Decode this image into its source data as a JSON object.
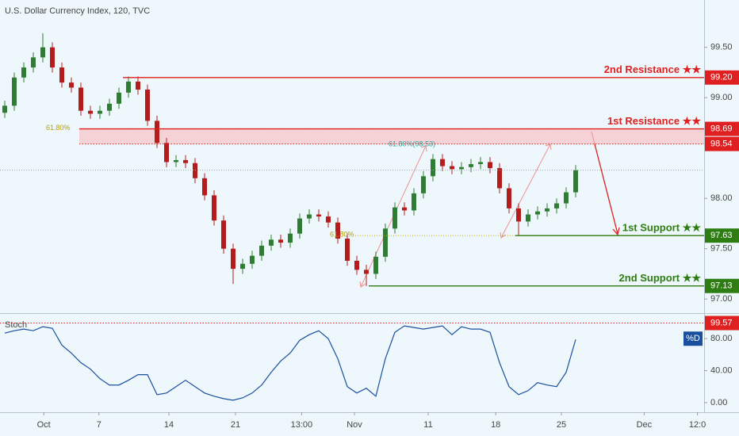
{
  "chart_data": [
    {
      "type": "candlestick",
      "title": "U.S. Dollar Currency Index, 120, TVC",
      "up_color": "#2e7d32",
      "down_color": "#b71c1c",
      "x": [
        0,
        1,
        2,
        3,
        4,
        5,
        6,
        7,
        8,
        9,
        10,
        11,
        12,
        13,
        14,
        15,
        16,
        17,
        18,
        19,
        20,
        21,
        22,
        23,
        24,
        25,
        26,
        27,
        28,
        29,
        30,
        31,
        32,
        33,
        34,
        35,
        36,
        37,
        38,
        39,
        40,
        41,
        42,
        43,
        44,
        45,
        46,
        47,
        48,
        49,
        50,
        51,
        52,
        53,
        54,
        55,
        56,
        57,
        58,
        59,
        60
      ],
      "open": [
        98.85,
        98.92,
        99.2,
        99.3,
        99.4,
        99.5,
        99.3,
        99.15,
        99.1,
        98.87,
        98.84,
        98.87,
        98.94,
        99.05,
        99.16,
        99.08,
        98.77,
        98.55,
        98.36,
        98.38,
        98.35,
        98.2,
        98.03,
        97.78,
        97.5,
        97.3,
        97.35,
        97.43,
        97.53,
        97.59,
        97.56,
        97.65,
        97.8,
        97.84,
        97.82,
        97.76,
        97.6,
        97.38,
        97.29,
        97.25,
        97.42,
        97.7,
        97.91,
        97.88,
        98.05,
        98.22,
        98.39,
        98.32,
        98.29,
        98.31,
        98.34,
        98.36,
        98.3,
        98.1,
        97.9,
        97.77,
        97.84,
        97.87,
        97.9,
        97.95,
        98.06
      ],
      "high": [
        98.97,
        99.25,
        99.35,
        99.45,
        99.64,
        99.55,
        99.35,
        99.2,
        99.15,
        98.92,
        98.92,
        98.99,
        99.1,
        99.21,
        99.21,
        99.13,
        98.82,
        98.6,
        98.43,
        98.43,
        98.4,
        98.25,
        98.08,
        97.83,
        97.55,
        97.4,
        97.48,
        97.58,
        97.64,
        97.64,
        97.7,
        97.85,
        97.89,
        97.89,
        97.87,
        97.81,
        97.65,
        97.43,
        97.34,
        97.47,
        97.75,
        97.96,
        97.96,
        98.1,
        98.27,
        98.44,
        98.44,
        98.37,
        98.36,
        98.39,
        98.41,
        98.41,
        98.35,
        98.15,
        97.95,
        97.89,
        97.92,
        97.95,
        98.0,
        98.11,
        98.33
      ],
      "low": [
        98.8,
        98.87,
        99.15,
        99.25,
        99.35,
        99.25,
        99.1,
        99.05,
        98.82,
        98.79,
        98.79,
        98.82,
        98.89,
        99.0,
        99.03,
        98.72,
        98.5,
        98.31,
        98.31,
        98.3,
        98.15,
        97.98,
        97.73,
        97.45,
        97.15,
        97.25,
        97.3,
        97.38,
        97.48,
        97.51,
        97.51,
        97.6,
        97.75,
        97.77,
        97.71,
        97.55,
        97.33,
        97.24,
        97.13,
        97.2,
        97.37,
        97.65,
        97.83,
        97.83,
        98.0,
        98.17,
        98.27,
        98.24,
        98.24,
        98.26,
        98.29,
        98.25,
        98.05,
        97.85,
        97.63,
        97.72,
        97.79,
        97.82,
        97.85,
        97.9,
        98.01
      ],
      "close": [
        98.92,
        99.2,
        99.3,
        99.4,
        99.5,
        99.3,
        99.15,
        99.1,
        98.87,
        98.84,
        98.87,
        98.94,
        99.05,
        99.16,
        99.08,
        98.77,
        98.55,
        98.36,
        98.38,
        98.35,
        98.2,
        98.03,
        97.78,
        97.5,
        97.3,
        97.35,
        97.43,
        97.53,
        97.59,
        97.56,
        97.65,
        97.8,
        97.84,
        97.82,
        97.76,
        97.6,
        97.38,
        97.29,
        97.25,
        97.42,
        97.7,
        97.91,
        97.88,
        98.05,
        98.22,
        98.39,
        98.32,
        98.29,
        98.31,
        98.34,
        98.36,
        98.3,
        98.1,
        97.9,
        97.77,
        97.84,
        97.87,
        97.9,
        97.95,
        98.06,
        98.28
      ],
      "xlim": [
        -0.5,
        73.5
      ],
      "xticks": [
        {
          "value": 4.1,
          "label": "Oct"
        },
        {
          "value": 9.9,
          "label": "7"
        },
        {
          "value": 17.25,
          "label": "14"
        },
        {
          "value": 24.25,
          "label": "21"
        },
        {
          "value": 31.2,
          "label": "13:00"
        },
        {
          "value": 36.75,
          "label": "Nov"
        },
        {
          "value": 44.5,
          "label": "11"
        },
        {
          "value": 51.6,
          "label": "18"
        },
        {
          "value": 58.5,
          "label": "25"
        },
        {
          "value": 67.2,
          "label": "Dec"
        },
        {
          "value": 72.8,
          "label": "12:0"
        }
      ],
      "ylim": [
        96.86,
        99.97
      ],
      "yticks": [
        {
          "value": 97,
          "label": "97.00"
        },
        {
          "value": 97.5,
          "label": "97.50"
        },
        {
          "value": 98,
          "label": "98.00"
        },
        {
          "value": 99,
          "label": "99.00"
        },
        {
          "value": 99.5,
          "label": "99.50"
        }
      ],
      "levels": [
        {
          "name": "2nd Resistance ★★",
          "value": 99.2,
          "value_label": "99.20",
          "color": "#e02020"
        },
        {
          "name": "1st Resistance ★★",
          "value": 98.69,
          "value_label": "98.69",
          "color": "#e02020"
        },
        {
          "value": 98.54,
          "value_label": "98.54",
          "color": "#e02020"
        },
        {
          "name": "1st Support ★★",
          "value": 97.63,
          "value_label": "97.63",
          "color": "#2e7d12"
        },
        {
          "name": "2nd Support ★★",
          "value": 97.13,
          "value_label": "97.13",
          "color": "#2e7d12"
        }
      ],
      "annotations": [
        "61.80%",
        "61.80%",
        "61.80%(98.53)"
      ]
    },
    {
      "type": "line",
      "title": "Stoch",
      "x": [
        0,
        1,
        2,
        3,
        4,
        5,
        6,
        7,
        8,
        9,
        10,
        11,
        12,
        13,
        14,
        15,
        16,
        17,
        18,
        19,
        20,
        21,
        22,
        23,
        24,
        25,
        26,
        27,
        28,
        29,
        30,
        31,
        32,
        33,
        34,
        35,
        36,
        37,
        38,
        39,
        40,
        41,
        42,
        43,
        44,
        45,
        46,
        47,
        48,
        49,
        50,
        51,
        52,
        53,
        54,
        55,
        56,
        57,
        58,
        59,
        60
      ],
      "series": [
        {
          "name": "%D",
          "color": "#1a4fa0",
          "values": [
            87,
            90,
            92,
            90,
            95,
            93,
            72,
            62,
            50,
            42,
            30,
            22,
            22,
            28,
            35,
            35,
            10,
            12,
            20,
            28,
            20,
            12,
            8,
            5,
            3,
            6,
            12,
            22,
            38,
            52,
            62,
            78,
            85,
            90,
            80,
            55,
            20,
            12,
            18,
            8,
            55,
            88,
            96,
            94,
            92,
            94,
            96,
            85,
            95,
            92,
            92,
            88,
            50,
            20,
            10,
            15,
            25,
            22,
            20,
            38,
            79
          ]
        }
      ],
      "ylim": [
        -12,
        110
      ],
      "yticks": [
        {
          "value": 0,
          "label": "0.00"
        },
        {
          "value": 40,
          "label": "40.00"
        },
        {
          "value": 80,
          "label": "80.00"
        }
      ],
      "levels": [
        {
          "value": 99.57,
          "value_label": "99.57",
          "color": "#e02020"
        }
      ]
    }
  ]
}
